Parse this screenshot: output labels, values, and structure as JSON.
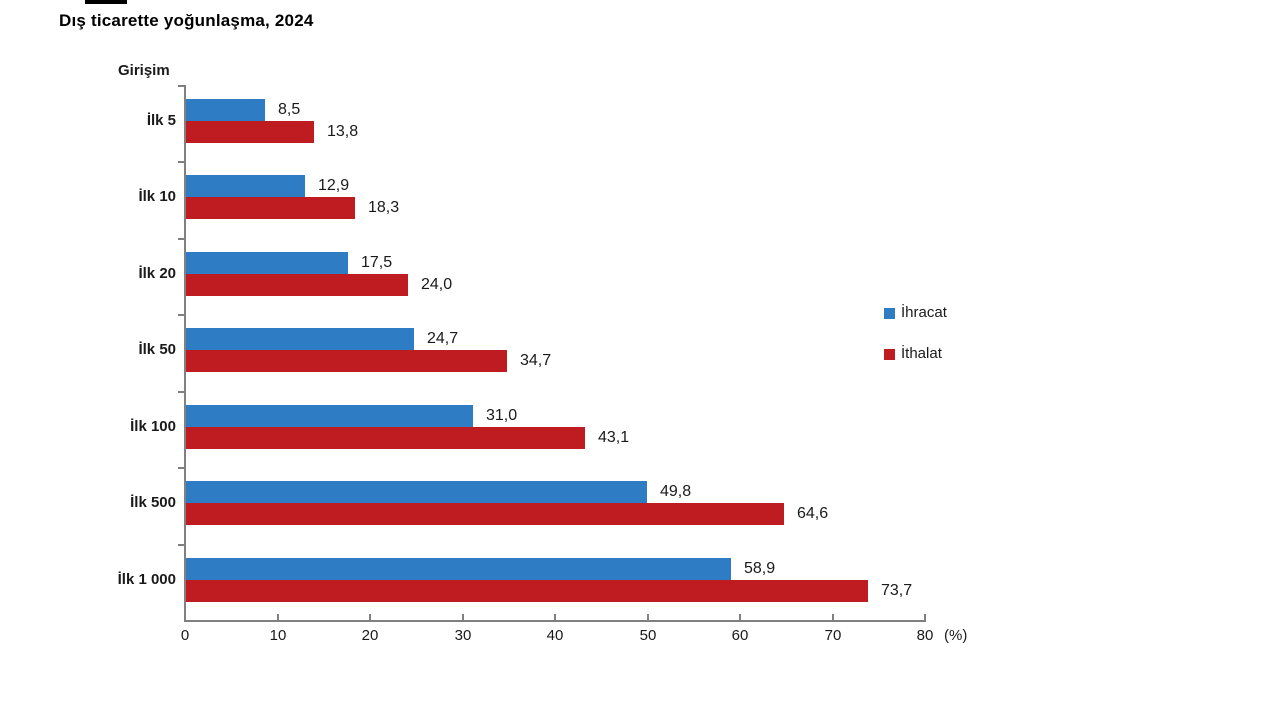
{
  "chart": {
    "title": "Dış ticarette yoğunlaşma, 2024",
    "y_axis_title": "Girişim",
    "x_unit": "(%)"
  },
  "chart_data": {
    "type": "bar",
    "orientation": "horizontal",
    "title": "Dış ticarette yoğunlaşma, 2024",
    "ylabel": "Girişim",
    "xlabel": "(%)",
    "xlim": [
      0,
      80
    ],
    "xticks": [
      0,
      10,
      20,
      30,
      40,
      50,
      60,
      70,
      80
    ],
    "grid": false,
    "legend_position": "center-right",
    "categories": [
      "İlk 5",
      "İlk 10",
      "İlk 20",
      "İlk 50",
      "İlk 100",
      "İlk 500",
      "İlk 1 000"
    ],
    "series": [
      {
        "name": "İhracat",
        "color": "#2E7CC3",
        "values": [
          8.5,
          12.9,
          17.5,
          24.7,
          31.0,
          49.8,
          58.9
        ],
        "value_labels": [
          "8,5",
          "12,9",
          "17,5",
          "24,7",
          "31,0",
          "49,8",
          "58,9"
        ]
      },
      {
        "name": "İthalat",
        "color": "#BE1C20",
        "values": [
          13.8,
          18.3,
          24.0,
          34.7,
          43.1,
          64.6,
          73.7
        ],
        "value_labels": [
          "13,8",
          "18,3",
          "24,0",
          "34,7",
          "43,1",
          "64,6",
          "73,7"
        ]
      }
    ]
  }
}
